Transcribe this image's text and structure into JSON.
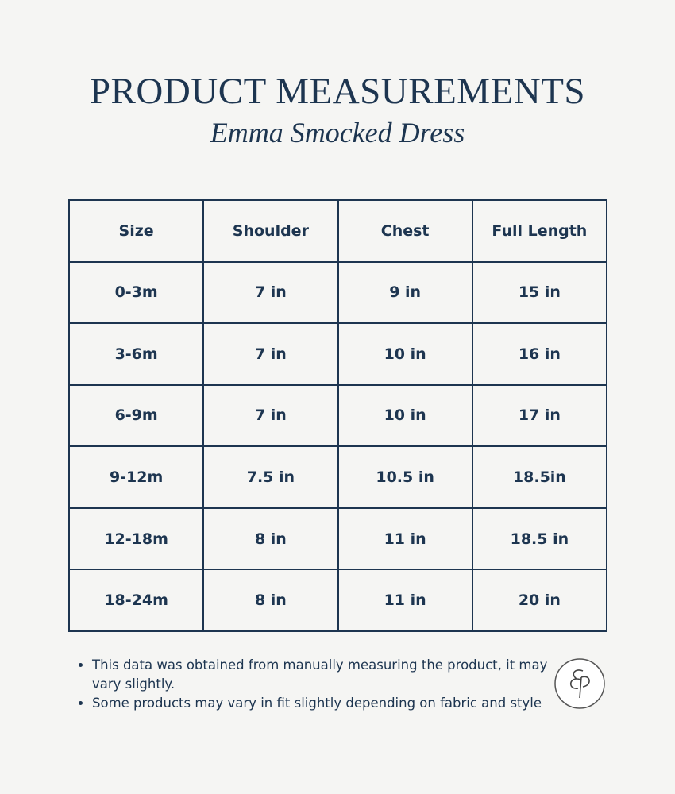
{
  "header": {
    "title": "PRODUCT MEASUREMENTS",
    "subtitle": "Emma Smocked Dress"
  },
  "table": {
    "columns": [
      "Size",
      "Shoulder",
      "Chest",
      "Full Length"
    ],
    "rows": [
      [
        "0-3m",
        "7 in",
        "9 in",
        "15 in"
      ],
      [
        "3-6m",
        "7 in",
        "10 in",
        "16 in"
      ],
      [
        "6-9m",
        "7 in",
        "10 in",
        "17 in"
      ],
      [
        "9-12m",
        "7.5 in",
        "10.5 in",
        "18.5in"
      ],
      [
        "12-18m",
        "8 in",
        "11 in",
        "18.5 in"
      ],
      [
        "18-24m",
        "8 in",
        "11 in",
        "20 in"
      ]
    ]
  },
  "notes": [
    "This data was obtained from manually measuring the product,  it may vary slightly.",
    "Some products may vary in fit slightly depending on fabric and style"
  ]
}
